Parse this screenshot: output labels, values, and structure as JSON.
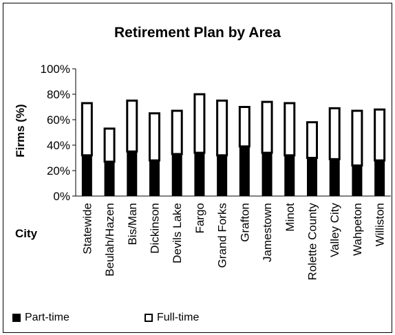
{
  "chart_data": {
    "type": "bar",
    "stacked": true,
    "title": "Retirement Plan by Area",
    "xlabel": "City",
    "ylabel": "Firms (%)",
    "ylim": [
      0,
      100
    ],
    "yticks": [
      "0%",
      "20%",
      "40%",
      "60%",
      "80%",
      "100%"
    ],
    "grid": false,
    "legend_position": "bottom",
    "categories": [
      "Statewide",
      "Beulah/Hazen",
      "Bis/Man",
      "Dickinson",
      "Devils Lake",
      "Fargo",
      "Grand Forks",
      "Grafton",
      "Jamestown",
      "Minot",
      "Rolette  County",
      "Valley City",
      "Wahpeton",
      "Williston"
    ],
    "series": [
      {
        "name": "Part-time",
        "color": "#000000",
        "values": [
          32,
          27,
          35,
          28,
          33,
          34,
          32,
          39,
          34,
          32,
          30,
          29,
          24,
          28
        ]
      },
      {
        "name": "Full-time",
        "color": "#ffffff",
        "values": [
          41,
          26,
          40,
          37,
          34,
          46,
          43,
          31,
          40,
          41,
          28,
          40,
          43,
          40
        ]
      }
    ]
  }
}
